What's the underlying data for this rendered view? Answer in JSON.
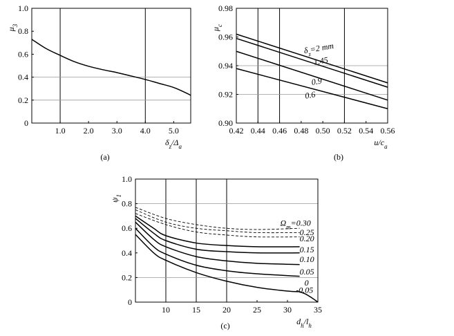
{
  "chart_data": [
    {
      "id": "a",
      "type": "line",
      "caption": "(a)",
      "xlabel": "δz/Δa",
      "ylabel": "μ3",
      "xlim": [
        0.0,
        5.6
      ],
      "ylim": [
        0.0,
        1.0
      ],
      "xticks": [
        1.0,
        2.0,
        3.0,
        4.0,
        5.0
      ],
      "xtick_labels": [
        "1.0",
        "2.0",
        "3.0",
        "4.0",
        "5.0"
      ],
      "yticks": [
        0,
        0.2,
        0.4,
        0.6,
        0.8,
        1.0
      ],
      "ytick_labels": [
        "0",
        "0.2",
        "0.4",
        "0.6",
        "0.8",
        "1.0"
      ],
      "grid_x": [
        1.0,
        4.0
      ],
      "grid_y": [
        0.4,
        0.2
      ],
      "series": [
        {
          "x": [
            0.0,
            0.5,
            1.0,
            1.5,
            2.0,
            2.5,
            3.0,
            3.5,
            4.0,
            4.5,
            5.0,
            5.5,
            5.6
          ],
          "y": [
            0.73,
            0.65,
            0.59,
            0.535,
            0.495,
            0.465,
            0.44,
            0.41,
            0.38,
            0.345,
            0.31,
            0.255,
            0.24
          ]
        }
      ]
    },
    {
      "id": "b",
      "type": "line",
      "caption": "(b)",
      "xlabel": "u/ca",
      "ylabel": "μc",
      "xlim": [
        0.42,
        0.56
      ],
      "ylim": [
        0.9,
        0.98
      ],
      "xticks": [
        0.42,
        0.44,
        0.46,
        0.48,
        0.5,
        0.52,
        0.54,
        0.56
      ],
      "xtick_labels": [
        "0.42",
        "0.44",
        "0.46",
        "0.48",
        "0.50",
        "0.52",
        "0.54",
        "0.56"
      ],
      "yticks": [
        0.9,
        0.92,
        0.94,
        0.96,
        0.98
      ],
      "ytick_labels": [
        "0.90",
        "0.92",
        "0.94",
        "0.96",
        "0.98"
      ],
      "grid_x": [
        0.44,
        0.46,
        0.52
      ],
      "grid_y": [
        0.94,
        0.92
      ],
      "series": [
        {
          "name": "δz=2 mm",
          "x": [
            0.42,
            0.56
          ],
          "y": [
            0.962,
            0.928
          ]
        },
        {
          "name": "1.45",
          "x": [
            0.42,
            0.56
          ],
          "y": [
            0.959,
            0.925
          ]
        },
        {
          "name": "0.9",
          "x": [
            0.42,
            0.56
          ],
          "y": [
            0.95,
            0.916
          ]
        },
        {
          "name": "0.6",
          "x": [
            0.42,
            0.56
          ],
          "y": [
            0.938,
            0.91
          ]
        }
      ],
      "annotations": [
        {
          "text": "δz=2 mm",
          "x": 0.483,
          "y": 0.9485,
          "rotate": -10
        },
        {
          "text": "1.45",
          "x": 0.492,
          "y": 0.9405,
          "rotate": -10
        },
        {
          "text": "0.9",
          "x": 0.49,
          "y": 0.9265,
          "rotate": -10
        },
        {
          "text": "0.6",
          "x": 0.484,
          "y": 0.917,
          "rotate": -10
        }
      ]
    },
    {
      "id": "c",
      "type": "line",
      "caption": "(c)",
      "xlabel": "dh/lh",
      "ylabel": "ψ1",
      "xlim": [
        5,
        35
      ],
      "ylim": [
        0.0,
        1.0
      ],
      "xticks": [
        10,
        15,
        20,
        25,
        30,
        35
      ],
      "xtick_labels": [
        "10",
        "15",
        "20",
        "25",
        "30",
        "35"
      ],
      "yticks": [
        0,
        0.2,
        0.4,
        0.6,
        0.8,
        1.0
      ],
      "ytick_labels": [
        "0",
        "0.2",
        "0.4",
        "0.6",
        "0.8",
        "1.0"
      ],
      "grid_x": [
        10,
        15,
        20
      ],
      "grid_y": [
        0.8,
        0.2
      ],
      "series": [
        {
          "name": "Ωm=0.30",
          "style": "dashed",
          "x": [
            5,
            10,
            15,
            20,
            25,
            32
          ],
          "y": [
            0.77,
            0.68,
            0.63,
            0.6,
            0.59,
            0.6
          ]
        },
        {
          "name": "0.25",
          "style": "dashed",
          "x": [
            5,
            10,
            15,
            20,
            25,
            32
          ],
          "y": [
            0.75,
            0.65,
            0.6,
            0.58,
            0.565,
            0.565
          ]
        },
        {
          "name": "0.20",
          "style": "dashed",
          "x": [
            5,
            10,
            15,
            20,
            25,
            32
          ],
          "y": [
            0.72,
            0.63,
            0.57,
            0.545,
            0.53,
            0.53
          ]
        },
        {
          "name": "0.20",
          "style": "solid",
          "x": [
            5,
            8,
            10,
            15,
            20,
            25,
            32
          ],
          "y": [
            0.7,
            0.6,
            0.54,
            0.48,
            0.46,
            0.45,
            0.45
          ]
        },
        {
          "name": "0.15",
          "style": "solid",
          "x": [
            5,
            8,
            10,
            15,
            20,
            25,
            32
          ],
          "y": [
            0.68,
            0.56,
            0.5,
            0.43,
            0.41,
            0.4,
            0.4
          ]
        },
        {
          "name": "0.10",
          "style": "solid",
          "x": [
            5,
            8,
            10,
            15,
            20,
            25,
            32
          ],
          "y": [
            0.65,
            0.51,
            0.45,
            0.37,
            0.335,
            0.315,
            0.305
          ]
        },
        {
          "name": "0.05",
          "style": "solid",
          "x": [
            5,
            8,
            10,
            15,
            20,
            25,
            32
          ],
          "y": [
            0.6,
            0.45,
            0.39,
            0.3,
            0.255,
            0.23,
            0.21
          ]
        },
        {
          "name": "0",
          "style": "solid",
          "x": [
            5,
            8,
            10,
            15,
            20,
            25,
            30,
            32
          ],
          "y": [
            0.55,
            0.4,
            0.34,
            0.24,
            0.17,
            0.12,
            0.09,
            0.085
          ]
        },
        {
          "name": "-0.05",
          "style": "solid",
          "x": [
            32,
            33,
            34,
            35
          ],
          "y": [
            0.085,
            0.065,
            0.035,
            0.0
          ]
        }
      ],
      "annotations": [
        {
          "text": "Ωm=0.30",
          "x": 28.8,
          "y": 0.62
        },
        {
          "text": "0.25",
          "x": 32.0,
          "y": 0.545
        },
        {
          "text": "0.20",
          "x": 32.0,
          "y": 0.495
        },
        {
          "text": "0.15",
          "x": 32.0,
          "y": 0.405
        },
        {
          "text": "0.10",
          "x": 32.0,
          "y": 0.325
        },
        {
          "text": "0.05",
          "x": 32.0,
          "y": 0.225
        },
        {
          "text": "0",
          "x": 32.8,
          "y": 0.135
        },
        {
          "text": "-0.05",
          "x": 31.4,
          "y": 0.075
        }
      ]
    }
  ]
}
